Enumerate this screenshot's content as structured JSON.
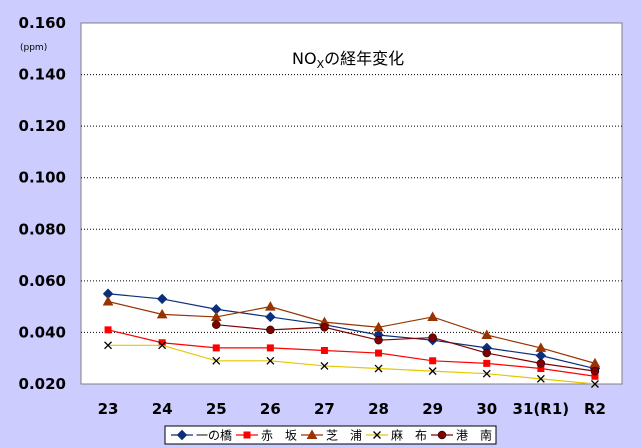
{
  "chart_data": {
    "type": "line",
    "title_main": "NO",
    "title_sub": "X",
    "title_rest": "の経年変化",
    "unit": "(ppm)",
    "categories": [
      "23",
      "24",
      "25",
      "26",
      "27",
      "28",
      "29",
      "30",
      "31(R1)",
      "R2"
    ],
    "ylim": [
      0.02,
      0.16
    ],
    "yticks": [
      "0.020",
      "0.040",
      "0.060",
      "0.080",
      "0.100",
      "0.120",
      "0.140",
      "0.160"
    ],
    "grid": true,
    "legend_position": "bottom",
    "series": [
      {
        "name": "一の橋",
        "color": "#0b2f7a",
        "marker": "diamond",
        "values": [
          0.055,
          0.053,
          0.049,
          0.046,
          0.043,
          0.039,
          0.037,
          0.034,
          0.031,
          0.026
        ]
      },
      {
        "name": "赤　坂",
        "color": "#ff0000",
        "marker": "square",
        "values": [
          0.041,
          0.036,
          0.034,
          0.034,
          0.033,
          0.032,
          0.029,
          0.028,
          0.026,
          0.023
        ]
      },
      {
        "name": "芝　浦",
        "color": "#993300",
        "marker": "triangle",
        "values": [
          0.052,
          0.047,
          0.046,
          0.05,
          0.044,
          0.042,
          0.046,
          0.039,
          0.034,
          0.028
        ]
      },
      {
        "name": "麻　布",
        "color": "#e6c800",
        "marker": "x",
        "values": [
          0.035,
          0.035,
          0.029,
          0.029,
          0.027,
          0.026,
          0.025,
          0.024,
          0.022,
          0.02
        ]
      },
      {
        "name": "港　南",
        "color": "#800000",
        "marker": "circle",
        "values": [
          null,
          null,
          0.043,
          0.041,
          0.042,
          0.037,
          0.038,
          0.032,
          0.028,
          0.025
        ]
      }
    ]
  }
}
